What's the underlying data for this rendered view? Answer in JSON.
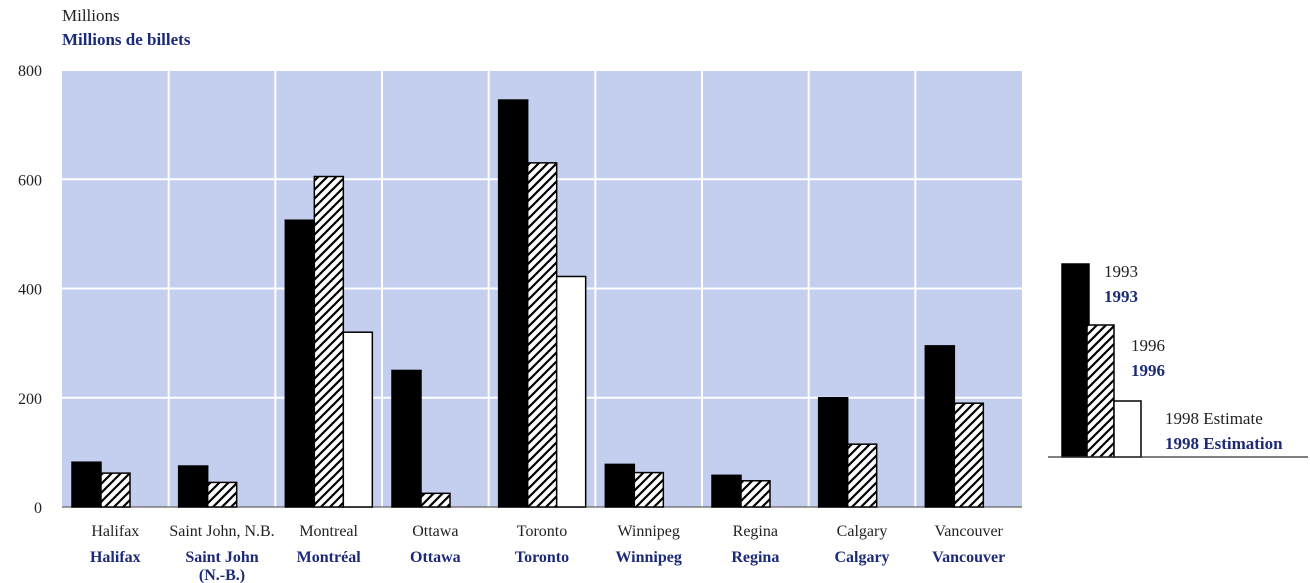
{
  "colors": {
    "plot_bg": "#c4cff0",
    "gridline": "#ffffff",
    "bar_1993": "#000000",
    "bar_outline": "#000000",
    "french_text": "#1c2a78",
    "english_text": "#222222"
  },
  "chart_data": {
    "type": "bar",
    "unit_label": "Millions",
    "unit_label_fr": "Millions de billets",
    "categories": [
      "Halifax",
      "Saint John, N.B.",
      "Montreal",
      "Ottawa",
      "Toronto",
      "Winnipeg",
      "Regina",
      "Calgary",
      "Vancouver"
    ],
    "categories_fr": [
      "Halifax",
      "Saint John (N.-B.)",
      "Montréal",
      "Ottawa",
      "Toronto",
      "Winnipeg",
      "Regina",
      "Calgary",
      "Vancouver"
    ],
    "series": [
      {
        "name": "1993",
        "name_fr": "1993",
        "pattern": "solid-black",
        "values": [
          82,
          75,
          525,
          250,
          745,
          78,
          58,
          200,
          295
        ]
      },
      {
        "name": "1996",
        "name_fr": "1996",
        "pattern": "diagonal-hatch",
        "values": [
          62,
          45,
          605,
          25,
          630,
          63,
          48,
          115,
          190
        ]
      },
      {
        "name": "1998 Estimate",
        "name_fr": "1998 Estimation",
        "pattern": "white",
        "values": [
          null,
          null,
          320,
          null,
          422,
          null,
          null,
          null,
          null
        ]
      }
    ],
    "ylim": [
      0,
      800
    ],
    "yticks": [
      0,
      200,
      400,
      600,
      800
    ],
    "grid": true,
    "legend_position": "right"
  }
}
